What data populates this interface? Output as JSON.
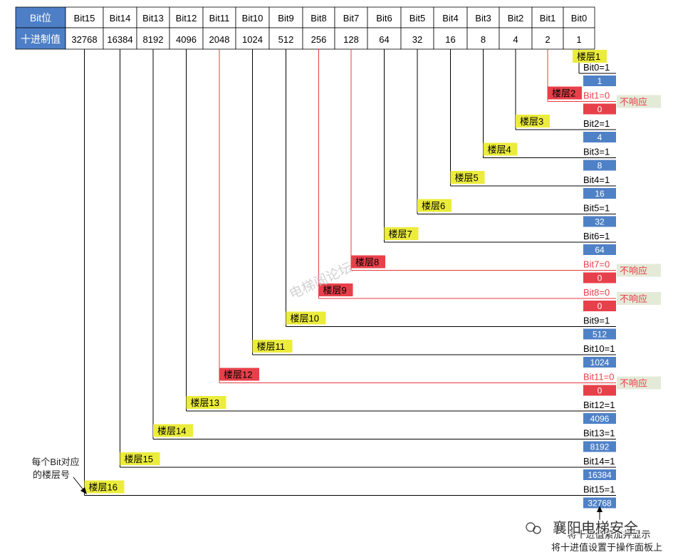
{
  "table": {
    "row1_header": "Bit位",
    "row2_header": "十进制值",
    "bits": [
      "Bit15",
      "Bit14",
      "Bit13",
      "Bit12",
      "Bit11",
      "Bit10",
      "Bit9",
      "Bit8",
      "Bit7",
      "Bit6",
      "Bit5",
      "Bit4",
      "Bit3",
      "Bit2",
      "Bit1",
      "Bit0"
    ],
    "values": [
      "32768",
      "16384",
      "8192",
      "4096",
      "2048",
      "1024",
      "512",
      "256",
      "128",
      "64",
      "32",
      "16",
      "8",
      "4",
      "2",
      "1"
    ]
  },
  "floors": [
    {
      "bit": 0,
      "floor_label": "楼层1",
      "bit_text": "Bit0=1",
      "value_text": "1",
      "responds": true
    },
    {
      "bit": 1,
      "floor_label": "楼层2",
      "bit_text": "Bit1=0",
      "value_text": "0",
      "responds": false
    },
    {
      "bit": 2,
      "floor_label": "楼层3",
      "bit_text": "Bit2=1",
      "value_text": "4",
      "responds": true
    },
    {
      "bit": 3,
      "floor_label": "楼层4",
      "bit_text": "Bit3=1",
      "value_text": "8",
      "responds": true
    },
    {
      "bit": 4,
      "floor_label": "楼层5",
      "bit_text": "Bit4=1",
      "value_text": "16",
      "responds": true
    },
    {
      "bit": 5,
      "floor_label": "楼层6",
      "bit_text": "Bit5=1",
      "value_text": "32",
      "responds": true
    },
    {
      "bit": 6,
      "floor_label": "楼层7",
      "bit_text": "Bit6=1",
      "value_text": "64",
      "responds": true
    },
    {
      "bit": 7,
      "floor_label": "楼层8",
      "bit_text": "Bit7=0",
      "value_text": "0",
      "responds": false
    },
    {
      "bit": 8,
      "floor_label": "楼层9",
      "bit_text": "Bit8=0",
      "value_text": "0",
      "responds": false
    },
    {
      "bit": 9,
      "floor_label": "楼层10",
      "bit_text": "Bit9=1",
      "value_text": "512",
      "responds": true
    },
    {
      "bit": 10,
      "floor_label": "楼层11",
      "bit_text": "Bit10=1",
      "value_text": "1024",
      "responds": true
    },
    {
      "bit": 11,
      "floor_label": "楼层12",
      "bit_text": "Bit11=0",
      "value_text": "0",
      "responds": false
    },
    {
      "bit": 12,
      "floor_label": "楼层13",
      "bit_text": "Bit12=1",
      "value_text": "4096",
      "responds": true
    },
    {
      "bit": 13,
      "floor_label": "楼层14",
      "bit_text": "Bit13=1",
      "value_text": "8192",
      "responds": true
    },
    {
      "bit": 14,
      "floor_label": "楼层15",
      "bit_text": "Bit14=1",
      "value_text": "16384",
      "responds": true
    },
    {
      "bit": 15,
      "floor_label": "楼层16",
      "bit_text": "Bit15=1",
      "value_text": "32768",
      "responds": true
    }
  ],
  "no_response_text": "不响应",
  "side_note": [
    "每个Bit对应",
    "的楼层号"
  ],
  "bottom_note": [
    "将十进值累加并显示",
    "将十进值设置于操作面板上"
  ],
  "watermark_text": "电梯阁论坛",
  "account_name": "襄阳电梯安全",
  "colors": {
    "header_blue": "#4e7fc6",
    "value_blue": "#4f81c6",
    "label_yellow": "#ecec3c",
    "off_red": "#e8404a",
    "line_red": "#e8383e",
    "note_bg": "#e4ead8"
  }
}
